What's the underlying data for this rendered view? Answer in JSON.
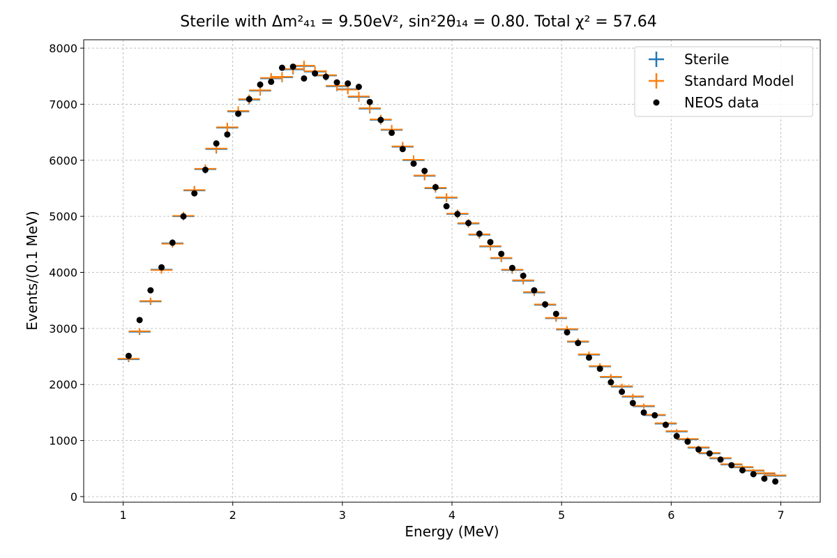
{
  "chart_data": {
    "type": "scatter",
    "title": "Sterile with Δm²₄₁ = 9.50eV², sin²2θ₁₄ = 0.80. Total χ² = 57.64",
    "xlabel": "Energy (MeV)",
    "ylabel": "Events/(0.1 MeV)",
    "xlim": [
      0.64,
      7.36
    ],
    "ylim": [
      -100,
      8150
    ],
    "x_ticks": [
      "1",
      "2",
      "3",
      "4",
      "5",
      "6",
      "7"
    ],
    "y_ticks": [
      "0",
      "1000",
      "2000",
      "3000",
      "4000",
      "5000",
      "6000",
      "7000",
      "8000"
    ],
    "grid": true,
    "legend_position": "top-right",
    "bin_half_width": 0.1,
    "series": [
      {
        "name": "Sterile",
        "style": "errorbar",
        "color": "#1f77b4",
        "x": [
          1.05,
          1.15,
          1.25,
          1.35,
          1.45,
          1.55,
          1.65,
          1.75,
          1.85,
          1.95,
          2.05,
          2.15,
          2.25,
          2.35,
          2.45,
          2.55,
          2.65,
          2.75,
          2.85,
          2.95,
          3.05,
          3.15,
          3.25,
          3.35,
          3.45,
          3.55,
          3.65,
          3.75,
          3.85,
          3.95,
          4.05,
          4.15,
          4.25,
          4.35,
          4.45,
          4.55,
          4.65,
          4.75,
          4.85,
          4.95,
          5.05,
          5.15,
          5.25,
          5.35,
          5.45,
          5.55,
          5.65,
          5.75,
          5.85,
          5.95,
          6.05,
          6.15,
          6.25,
          6.35,
          6.45,
          6.55,
          6.65,
          6.75,
          6.85,
          6.95
        ],
        "y": [
          2450,
          2940,
          3480,
          4050,
          4520,
          5000,
          5460,
          5840,
          6200,
          6580,
          6870,
          7080,
          7240,
          7460,
          7480,
          7620,
          7680,
          7580,
          7510,
          7320,
          7270,
          7130,
          6920,
          6720,
          6540,
          6240,
          6000,
          5720,
          5500,
          5330,
          5040,
          4870,
          4670,
          4460,
          4250,
          4040,
          3850,
          3640,
          3420,
          3180,
          2980,
          2760,
          2530,
          2320,
          2130,
          1960,
          1780,
          1610,
          1450,
          1300,
          1160,
          1020,
          870,
          770,
          680,
          570,
          520,
          460,
          410,
          370
        ]
      },
      {
        "name": "Standard Model",
        "style": "errorbar",
        "color": "#ff7f0e",
        "x": [
          1.05,
          1.15,
          1.25,
          1.35,
          1.45,
          1.55,
          1.65,
          1.75,
          1.85,
          1.95,
          2.05,
          2.15,
          2.25,
          2.35,
          2.45,
          2.55,
          2.65,
          2.75,
          2.85,
          2.95,
          3.05,
          3.15,
          3.25,
          3.35,
          3.45,
          3.55,
          3.65,
          3.75,
          3.85,
          3.95,
          4.05,
          4.15,
          4.25,
          4.35,
          4.45,
          4.55,
          4.65,
          4.75,
          4.85,
          4.95,
          5.05,
          5.15,
          5.25,
          5.35,
          5.45,
          5.55,
          5.65,
          5.75,
          5.85,
          5.95,
          6.05,
          6.15,
          6.25,
          6.35,
          6.45,
          6.55,
          6.65,
          6.75,
          6.85,
          6.95
        ],
        "y": [
          2460,
          2950,
          3490,
          4040,
          4510,
          5010,
          5470,
          5850,
          6210,
          6590,
          6880,
          7090,
          7250,
          7470,
          7490,
          7630,
          7690,
          7590,
          7520,
          7330,
          7260,
          7140,
          6930,
          6730,
          6550,
          6250,
          6010,
          5730,
          5510,
          5340,
          5050,
          4880,
          4680,
          4470,
          4260,
          4050,
          3860,
          3650,
          3430,
          3190,
          2990,
          2770,
          2540,
          2330,
          2140,
          1970,
          1790,
          1620,
          1460,
          1310,
          1170,
          1030,
          880,
          780,
          690,
          580,
          530,
          470,
          420,
          380
        ]
      },
      {
        "name": "NEOS data",
        "style": "marker",
        "color": "#000000",
        "x": [
          1.05,
          1.15,
          1.25,
          1.35,
          1.45,
          1.55,
          1.65,
          1.75,
          1.85,
          1.95,
          2.05,
          2.15,
          2.25,
          2.35,
          2.45,
          2.55,
          2.65,
          2.75,
          2.85,
          2.95,
          3.05,
          3.15,
          3.25,
          3.35,
          3.45,
          3.55,
          3.65,
          3.75,
          3.85,
          3.95,
          4.05,
          4.15,
          4.25,
          4.35,
          4.45,
          4.55,
          4.65,
          4.75,
          4.85,
          4.95,
          5.05,
          5.15,
          5.25,
          5.35,
          5.45,
          5.55,
          5.65,
          5.75,
          5.85,
          5.95,
          6.05,
          6.15,
          6.25,
          6.35,
          6.45,
          6.55,
          6.65,
          6.75,
          6.85,
          6.95
        ],
        "y": [
          2510,
          3150,
          3680,
          4090,
          4530,
          5000,
          5410,
          5830,
          6300,
          6460,
          6830,
          7090,
          7350,
          7400,
          7650,
          7670,
          7460,
          7550,
          7490,
          7390,
          7370,
          7310,
          7040,
          6720,
          6490,
          6200,
          5940,
          5810,
          5520,
          5180,
          5040,
          4880,
          4690,
          4540,
          4330,
          4080,
          3940,
          3680,
          3430,
          3260,
          2930,
          2740,
          2480,
          2280,
          2040,
          1870,
          1670,
          1500,
          1450,
          1280,
          1080,
          980,
          840,
          770,
          660,
          560,
          470,
          400,
          320,
          270
        ]
      }
    ]
  }
}
